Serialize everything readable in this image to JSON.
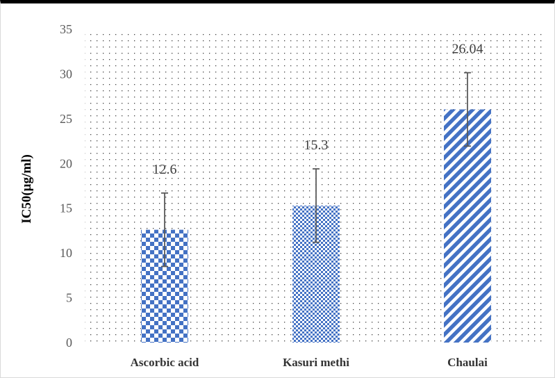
{
  "chart_data": {
    "type": "bar",
    "title": "",
    "xlabel": "",
    "ylabel": "IC50(µg/ml)",
    "ylim": [
      0,
      35
    ],
    "yticks": [
      0,
      5,
      10,
      15,
      20,
      25,
      30,
      35
    ],
    "grid": false,
    "legend": "none",
    "categories": [
      "Ascorbic acid",
      "Kasuri methi",
      "Chaulai"
    ],
    "values": [
      12.6,
      15.3,
      26.04
    ],
    "data_labels": [
      "12.6",
      "15.3",
      "26.04"
    ],
    "error": [
      4.1,
      4.1,
      4.1
    ],
    "bar_patterns": [
      "checkerboard",
      "small-checkerboard",
      "diagonal-stripes"
    ],
    "colors": {
      "bar": "#4472c4",
      "background_dots": "#404040",
      "error_bar": "#595959"
    }
  }
}
